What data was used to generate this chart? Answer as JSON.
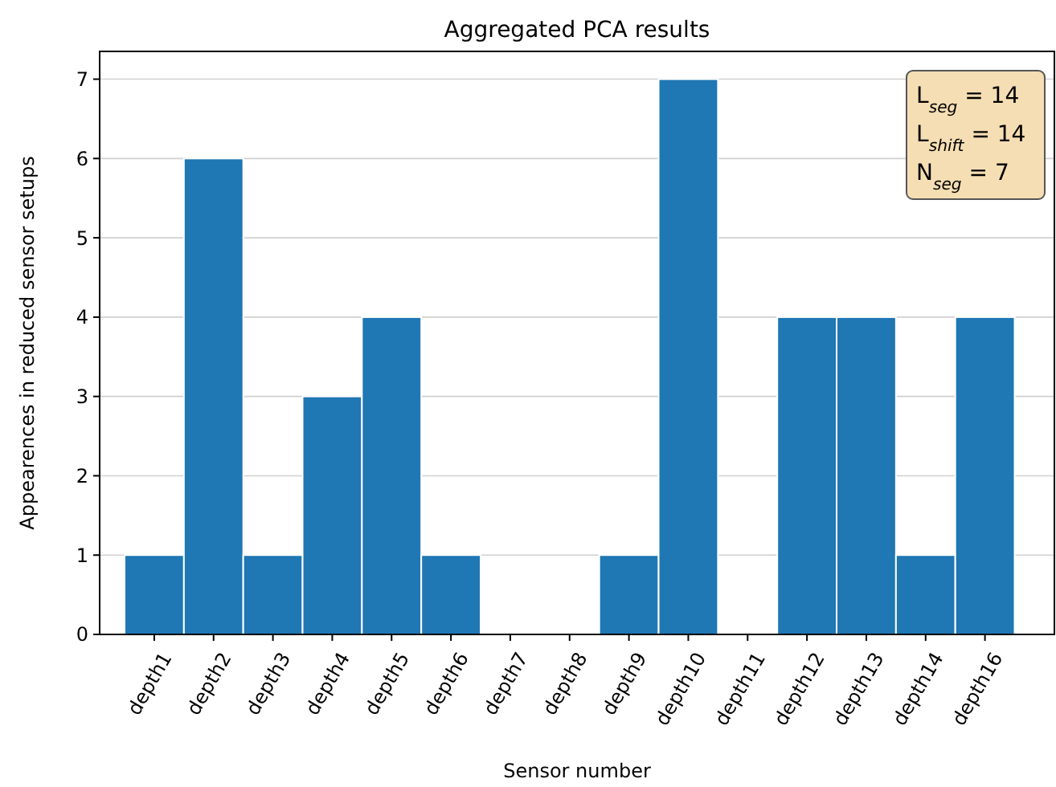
{
  "chart_data": {
    "type": "bar",
    "title": "Aggregated PCA results",
    "xlabel": "Sensor number",
    "ylabel": "Appearences in reduced sensor setups",
    "categories": [
      "depth1",
      "depth2",
      "depth3",
      "depth4",
      "depth5",
      "depth6",
      "depth7",
      "depth8",
      "depth9",
      "depth10",
      "depth11",
      "depth12",
      "depth13",
      "depth14",
      "depth16"
    ],
    "values": [
      1,
      6,
      1,
      3,
      4,
      1,
      0,
      0,
      1,
      7,
      0,
      4,
      4,
      1,
      4
    ],
    "color": "#1f77b4",
    "ylim": [
      0,
      7.35
    ],
    "yticks": [
      0,
      1,
      2,
      3,
      4,
      5,
      6,
      7
    ],
    "grid": "y",
    "annotations": [
      "L$_{seg}$ = 14",
      "L$_{shift}$ = 14",
      "N$_{seg}$ = 7"
    ]
  }
}
